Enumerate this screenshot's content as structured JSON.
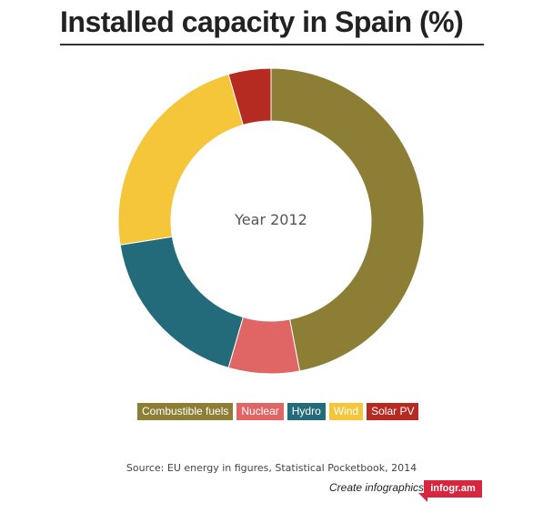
{
  "title": "Installed capacity in Spain (%)",
  "center_label": "Year 2012",
  "source": "Source: EU energy in figures, Statistical Pocketbook, 2014",
  "footer": {
    "create_label": "Create infographics",
    "brand_label": "infogr.am"
  },
  "colors": {
    "combustible": "#8c7e34",
    "nuclear": "#e06666",
    "hydro": "#236b7a",
    "wind": "#f5c53a",
    "solar": "#b52b21",
    "brand": "#d7263d"
  },
  "chart_data": {
    "type": "pie",
    "variant": "donut",
    "legend_position": "bottom",
    "categories": [
      "Combustible fuels",
      "Nuclear",
      "Hydro",
      "Wind",
      "Solar PV"
    ],
    "values": [
      47,
      7.5,
      18,
      23,
      4.5
    ],
    "colors": [
      "#8c7e34",
      "#e06666",
      "#236b7a",
      "#f5c53a",
      "#b52b21"
    ]
  }
}
